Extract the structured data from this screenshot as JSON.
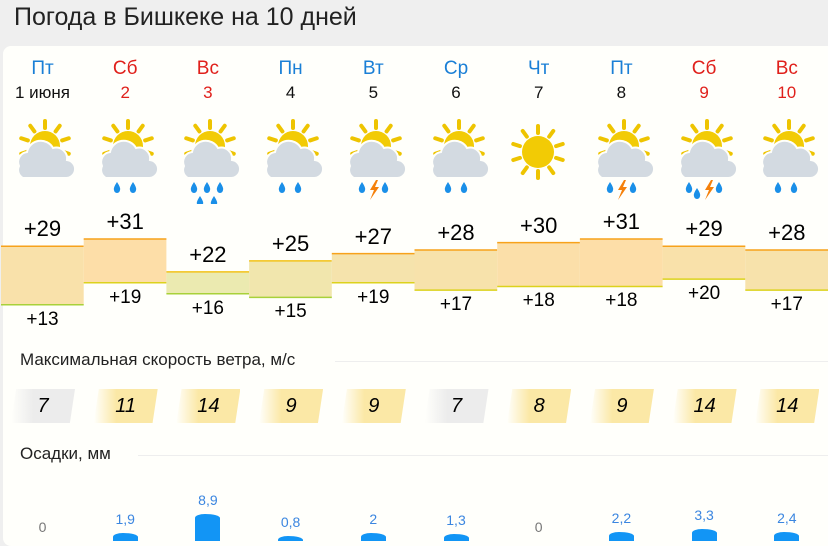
{
  "title": "Погода в Бишкеке на 10 дней",
  "colors": {
    "weekday": "#1a7fd6",
    "weekend": "#e0201b",
    "precip": "#1295f5",
    "max_line": "#f7a21b",
    "min_line": "#a8d13a"
  },
  "days": [
    {
      "dow": "Пт",
      "date": "1 июня",
      "weekend": false,
      "icon": "partly-cloudy",
      "max": "+29",
      "min": "+13",
      "wind": "7",
      "precip": "0"
    },
    {
      "dow": "Сб",
      "date": "2",
      "weekend": true,
      "icon": "partly-cloudy-light-rain",
      "max": "+31",
      "min": "+19",
      "wind": "11",
      "precip": "1,9"
    },
    {
      "dow": "Вс",
      "date": "3",
      "weekend": true,
      "icon": "partly-cloudy-rain",
      "max": "+22",
      "min": "+16",
      "wind": "14",
      "precip": "8,9"
    },
    {
      "dow": "Пн",
      "date": "4",
      "weekend": false,
      "icon": "partly-cloudy-light-rain",
      "max": "+25",
      "min": "+15",
      "wind": "9",
      "precip": "0,8"
    },
    {
      "dow": "Вт",
      "date": "5",
      "weekend": false,
      "icon": "partly-cloudy-thunderstorm",
      "max": "+27",
      "min": "+19",
      "wind": "9",
      "precip": "2"
    },
    {
      "dow": "Ср",
      "date": "6",
      "weekend": false,
      "icon": "partly-cloudy-light-rain",
      "max": "+28",
      "min": "+17",
      "wind": "7",
      "precip": "1,3"
    },
    {
      "dow": "Чт",
      "date": "7",
      "weekend": false,
      "icon": "clear",
      "max": "+30",
      "min": "+18",
      "wind": "8",
      "precip": "0"
    },
    {
      "dow": "Пт",
      "date": "8",
      "weekend": false,
      "icon": "partly-cloudy-thunderstorm",
      "max": "+31",
      "min": "+18",
      "wind": "9",
      "precip": "2,2"
    },
    {
      "dow": "Сб",
      "date": "9",
      "weekend": true,
      "icon": "partly-cloudy-thunderstorm-rain",
      "max": "+29",
      "min": "+20",
      "wind": "14",
      "precip": "3,3"
    },
    {
      "dow": "Вс",
      "date": "10",
      "weekend": true,
      "icon": "partly-cloudy-light-rain",
      "max": "+28",
      "min": "+17",
      "wind": "14",
      "precip": "2,4"
    }
  ],
  "wind_section": {
    "label": "Максимальная скорость ветра, м/с"
  },
  "precip_section": {
    "label": "Осадки, мм"
  }
}
